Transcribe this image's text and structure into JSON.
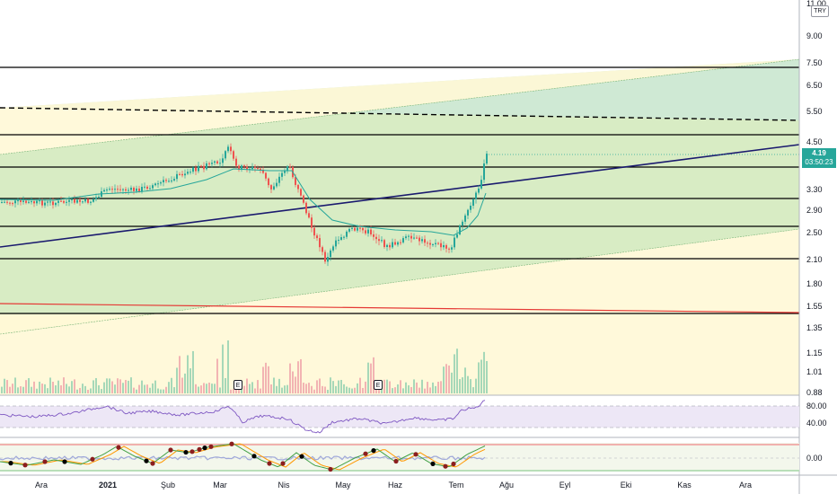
{
  "chart": {
    "currency": "TRY",
    "last_price": "4.19",
    "countdown": "03:50:23",
    "price_axis": [
      "11.00",
      "9.00",
      "7.50",
      "6.50",
      "5.50",
      "4.50",
      "3.30",
      "2.90",
      "2.50",
      "2.10",
      "1.80",
      "1.55",
      "1.35",
      "1.15",
      "1.01",
      "0.88"
    ],
    "rsi_axis": [
      "80.00",
      "40.00"
    ],
    "osc_axis": [
      "0.00"
    ],
    "time_axis": [
      "Ara",
      "2021",
      "Şub",
      "Mar",
      "Nis",
      "May",
      "Haz",
      "Tem",
      "Ağu",
      "Eyl",
      "Eki",
      "Kas",
      "Ara"
    ],
    "earnings": [
      "E",
      "E"
    ],
    "colors": {
      "up": "#26a69a",
      "down": "#ef5350",
      "ma": "#26a69a",
      "trendline": "#1a1a6e",
      "red_line": "#e53935",
      "zone_yellow": "#fff8d6",
      "zone_green": "#d8ecc4",
      "rsi_band": "#ede7f6"
    }
  }
}
